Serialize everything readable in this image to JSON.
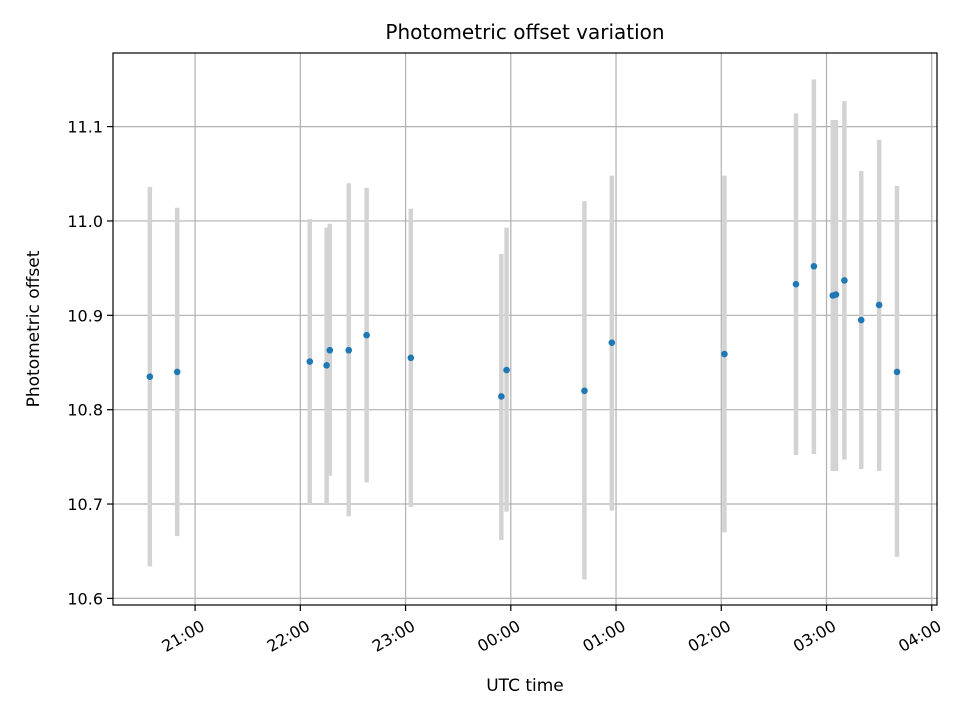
{
  "chart_data": {
    "type": "scatter",
    "title": "Photometric offset variation",
    "xlabel": "UTC time",
    "ylabel": "Photometric offset",
    "x_unit": "hours UTC (values past 24 are the following day)",
    "xlim": [
      20.22,
      28.05
    ],
    "ylim": [
      10.593,
      11.178
    ],
    "x_ticks": [
      {
        "value": 21,
        "label": "21:00"
      },
      {
        "value": 22,
        "label": "22:00"
      },
      {
        "value": 23,
        "label": "23:00"
      },
      {
        "value": 24,
        "label": "00:00"
      },
      {
        "value": 25,
        "label": "01:00"
      },
      {
        "value": 26,
        "label": "02:00"
      },
      {
        "value": 27,
        "label": "03:00"
      },
      {
        "value": 28,
        "label": "04:00"
      }
    ],
    "y_ticks": [
      {
        "value": 10.6,
        "label": "10.6"
      },
      {
        "value": 10.7,
        "label": "10.7"
      },
      {
        "value": 10.8,
        "label": "10.8"
      },
      {
        "value": 10.9,
        "label": "10.9"
      },
      {
        "value": 11.0,
        "label": "11.0"
      },
      {
        "value": 11.1,
        "label": "11.1"
      }
    ],
    "grid": true,
    "colors": {
      "point": "#1f77b4",
      "errorbar": "#d3d3d3",
      "grid": "#b0b0b0"
    },
    "series": [
      {
        "points": [
          {
            "x": 20.57,
            "y": 10.835,
            "lo": 10.634,
            "hi": 11.036
          },
          {
            "x": 20.83,
            "y": 10.84,
            "lo": 10.666,
            "hi": 11.014
          },
          {
            "x": 22.09,
            "y": 10.851,
            "lo": 10.7,
            "hi": 11.002
          },
          {
            "x": 22.25,
            "y": 10.847,
            "lo": 10.7,
            "hi": 10.993
          },
          {
            "x": 22.28,
            "y": 10.863,
            "lo": 10.73,
            "hi": 10.997
          },
          {
            "x": 22.46,
            "y": 10.863,
            "lo": 10.687,
            "hi": 11.04
          },
          {
            "x": 22.63,
            "y": 10.879,
            "lo": 10.723,
            "hi": 11.035
          },
          {
            "x": 23.05,
            "y": 10.855,
            "lo": 10.697,
            "hi": 11.013
          },
          {
            "x": 23.91,
            "y": 10.814,
            "lo": 10.662,
            "hi": 10.965
          },
          {
            "x": 23.96,
            "y": 10.842,
            "lo": 10.692,
            "hi": 10.993
          },
          {
            "x": 24.7,
            "y": 10.82,
            "lo": 10.62,
            "hi": 11.021
          },
          {
            "x": 24.96,
            "y": 10.871,
            "lo": 10.693,
            "hi": 11.048
          },
          {
            "x": 26.03,
            "y": 10.859,
            "lo": 10.67,
            "hi": 11.048
          },
          {
            "x": 26.71,
            "y": 10.933,
            "lo": 10.752,
            "hi": 11.114
          },
          {
            "x": 26.88,
            "y": 10.952,
            "lo": 10.753,
            "hi": 11.15
          },
          {
            "x": 27.06,
            "y": 10.921,
            "lo": 10.735,
            "hi": 11.107
          },
          {
            "x": 27.09,
            "y": 10.922,
            "lo": 10.735,
            "hi": 11.107
          },
          {
            "x": 27.17,
            "y": 10.937,
            "lo": 10.747,
            "hi": 11.127
          },
          {
            "x": 27.33,
            "y": 10.895,
            "lo": 10.737,
            "hi": 11.053
          },
          {
            "x": 27.5,
            "y": 10.911,
            "lo": 10.735,
            "hi": 11.086
          },
          {
            "x": 27.67,
            "y": 10.84,
            "lo": 10.644,
            "hi": 11.037
          }
        ]
      }
    ]
  }
}
